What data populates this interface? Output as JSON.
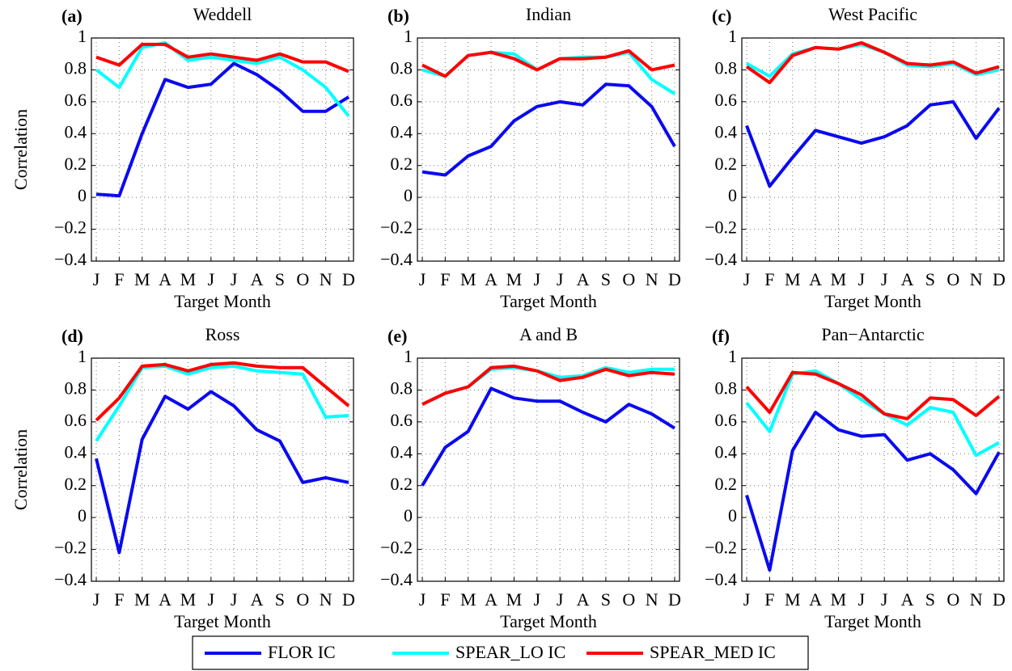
{
  "chart_data": [
    {
      "type": "line",
      "panel_label": "(a)",
      "title": "Weddell",
      "ylabel": "Correlation",
      "xlabel": "Target Month",
      "categories": [
        "J",
        "F",
        "M",
        "A",
        "M",
        "J",
        "J",
        "A",
        "S",
        "O",
        "N",
        "D"
      ],
      "ylim": [
        -0.4,
        1
      ],
      "yticks": [
        {
          "value": -0.4,
          "label": "−0.4"
        },
        {
          "value": -0.2,
          "label": "−0.2"
        },
        0,
        0.2,
        0.4,
        0.6,
        0.8,
        1
      ],
      "grid": true,
      "series": [
        {
          "name": "FLOR IC",
          "color": "#0a0af0",
          "values": [
            0.02,
            0.01,
            0.4,
            0.74,
            0.69,
            0.71,
            0.84,
            0.77,
            0.67,
            0.54,
            0.54,
            0.63
          ]
        },
        {
          "name": "SPEAR_LO IC",
          "color": "#00ffff",
          "values": [
            0.8,
            0.69,
            0.94,
            0.97,
            0.86,
            0.88,
            0.86,
            0.84,
            0.88,
            0.8,
            0.69,
            0.51
          ]
        },
        {
          "name": "SPEAR_MED IC",
          "color": "#ff0000",
          "values": [
            0.88,
            0.83,
            0.96,
            0.96,
            0.88,
            0.9,
            0.88,
            0.86,
            0.9,
            0.85,
            0.85,
            0.79
          ]
        }
      ]
    },
    {
      "type": "line",
      "panel_label": "(b)",
      "title": "Indian",
      "xlabel": "Target Month",
      "categories": [
        "J",
        "F",
        "M",
        "A",
        "M",
        "J",
        "J",
        "A",
        "S",
        "O",
        "N",
        "D"
      ],
      "ylim": [
        -0.4,
        1
      ],
      "yticks": [
        {
          "value": -0.4,
          "label": "−0.4"
        },
        {
          "value": -0.2,
          "label": "−0.2"
        },
        0,
        0.2,
        0.4,
        0.6,
        0.8,
        1
      ],
      "grid": true,
      "series": [
        {
          "color": "#0a0af0",
          "values": [
            0.16,
            0.14,
            0.26,
            0.32,
            0.48,
            0.57,
            0.6,
            0.58,
            0.71,
            0.7,
            0.57,
            0.32
          ]
        },
        {
          "color": "#00ffff",
          "values": [
            0.8,
            0.76,
            0.89,
            0.91,
            0.9,
            0.8,
            0.87,
            0.88,
            0.88,
            0.91,
            0.74,
            0.65
          ]
        },
        {
          "color": "#ff0000",
          "values": [
            0.83,
            0.76,
            0.89,
            0.91,
            0.87,
            0.8,
            0.87,
            0.87,
            0.88,
            0.92,
            0.8,
            0.83
          ]
        }
      ]
    },
    {
      "type": "line",
      "panel_label": "(c)",
      "title": "West Pacific",
      "xlabel": "Target Month",
      "categories": [
        "J",
        "F",
        "M",
        "A",
        "M",
        "J",
        "J",
        "A",
        "S",
        "O",
        "N",
        "D"
      ],
      "ylim": [
        -0.4,
        1
      ],
      "yticks": [
        {
          "value": -0.4,
          "label": "−0.4"
        },
        {
          "value": -0.2,
          "label": "−0.2"
        },
        0,
        0.2,
        0.4,
        0.6,
        0.8,
        1
      ],
      "grid": true,
      "series": [
        {
          "color": "#0a0af0",
          "values": [
            0.45,
            0.07,
            0.25,
            0.42,
            0.38,
            0.34,
            0.38,
            0.45,
            0.58,
            0.6,
            0.37,
            0.56
          ]
        },
        {
          "color": "#00ffff",
          "values": [
            0.84,
            0.76,
            0.9,
            0.94,
            0.93,
            0.96,
            0.91,
            0.83,
            0.82,
            0.84,
            0.77,
            0.8
          ]
        },
        {
          "color": "#ff0000",
          "values": [
            0.82,
            0.72,
            0.89,
            0.94,
            0.93,
            0.97,
            0.91,
            0.84,
            0.83,
            0.85,
            0.78,
            0.82
          ]
        }
      ]
    },
    {
      "type": "line",
      "panel_label": "(d)",
      "title": "Ross",
      "ylabel": "Correlation",
      "xlabel": "Target Month",
      "categories": [
        "J",
        "F",
        "M",
        "A",
        "M",
        "J",
        "J",
        "A",
        "S",
        "O",
        "N",
        "D"
      ],
      "ylim": [
        -0.4,
        1
      ],
      "yticks": [
        {
          "value": -0.4,
          "label": "−0.4"
        },
        {
          "value": -0.2,
          "label": "−0.2"
        },
        0,
        0.2,
        0.4,
        0.6,
        0.8,
        1
      ],
      "grid": true,
      "series": [
        {
          "color": "#0a0af0",
          "values": [
            0.37,
            -0.22,
            0.49,
            0.76,
            0.68,
            0.79,
            0.7,
            0.55,
            0.48,
            0.22,
            0.25,
            0.22
          ]
        },
        {
          "color": "#00ffff",
          "values": [
            0.48,
            0.7,
            0.94,
            0.95,
            0.9,
            0.94,
            0.95,
            0.92,
            0.91,
            0.9,
            0.63,
            0.64
          ]
        },
        {
          "color": "#ff0000",
          "values": [
            0.61,
            0.75,
            0.95,
            0.96,
            0.92,
            0.96,
            0.97,
            0.95,
            0.94,
            0.94,
            0.82,
            0.7
          ]
        }
      ]
    },
    {
      "type": "line",
      "panel_label": "(e)",
      "title": "A and B",
      "xlabel": "Target Month",
      "categories": [
        "J",
        "F",
        "M",
        "A",
        "M",
        "J",
        "J",
        "A",
        "S",
        "O",
        "N",
        "D"
      ],
      "ylim": [
        -0.4,
        1
      ],
      "yticks": [
        {
          "value": -0.4,
          "label": "−0.4"
        },
        {
          "value": -0.2,
          "label": "−0.2"
        },
        0,
        0.2,
        0.4,
        0.6,
        0.8,
        1
      ],
      "grid": true,
      "series": [
        {
          "color": "#0a0af0",
          "values": [
            0.2,
            0.44,
            0.54,
            0.81,
            0.75,
            0.73,
            0.73,
            0.66,
            0.6,
            0.71,
            0.65,
            0.56
          ]
        },
        {
          "color": "#00ffff",
          "values": [
            0.71,
            0.78,
            0.82,
            0.93,
            0.94,
            0.92,
            0.88,
            0.89,
            0.94,
            0.91,
            0.93,
            0.93
          ]
        },
        {
          "color": "#ff0000",
          "values": [
            0.71,
            0.78,
            0.82,
            0.94,
            0.95,
            0.92,
            0.86,
            0.88,
            0.93,
            0.89,
            0.91,
            0.9
          ]
        }
      ]
    },
    {
      "type": "line",
      "panel_label": "(f)",
      "title": "Pan−Antarctic",
      "xlabel": "Target Month",
      "categories": [
        "J",
        "F",
        "M",
        "A",
        "M",
        "J",
        "J",
        "A",
        "S",
        "O",
        "N",
        "D"
      ],
      "ylim": [
        -0.4,
        1
      ],
      "yticks": [
        {
          "value": -0.4,
          "label": "−0.4"
        },
        {
          "value": -0.2,
          "label": "−0.2"
        },
        0,
        0.2,
        0.4,
        0.6,
        0.8,
        1
      ],
      "grid": true,
      "series": [
        {
          "color": "#0a0af0",
          "values": [
            0.14,
            -0.33,
            0.42,
            0.66,
            0.55,
            0.51,
            0.52,
            0.36,
            0.4,
            0.3,
            0.15,
            0.41
          ]
        },
        {
          "color": "#00ffff",
          "values": [
            0.72,
            0.54,
            0.9,
            0.92,
            0.84,
            0.74,
            0.65,
            0.58,
            0.69,
            0.66,
            0.39,
            0.47
          ]
        },
        {
          "color": "#ff0000",
          "values": [
            0.82,
            0.66,
            0.91,
            0.9,
            0.84,
            0.77,
            0.65,
            0.62,
            0.75,
            0.74,
            0.64,
            0.76
          ]
        }
      ]
    }
  ]
}
